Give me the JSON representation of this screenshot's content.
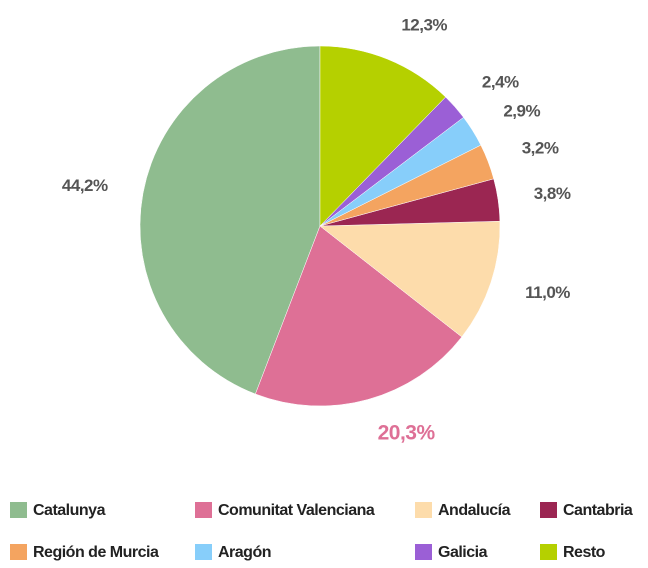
{
  "chart_data": {
    "type": "pie",
    "categories": [
      "Catalunya",
      "Comunitat Valenciana",
      "Andalucía",
      "Cantabria",
      "Región de Murcia",
      "Aragón",
      "Galicia",
      "Resto"
    ],
    "values": [
      44.2,
      20.3,
      11.0,
      3.8,
      3.2,
      2.9,
      2.4,
      12.3
    ],
    "value_labels": [
      "44,2%",
      "20,3%",
      "11,0%",
      "3,8%",
      "3,2%",
      "2,9%",
      "2,4%",
      "12,3%"
    ],
    "colors": [
      "#8fbc8f",
      "#de7096",
      "#fddcab",
      "#9b2652",
      "#f4a460",
      "#87cefa",
      "#9b5fd6",
      "#b5d000"
    ],
    "value_label_colors": [
      "#555555",
      "#de7096",
      "#555555",
      "#555555",
      "#555555",
      "#555555",
      "#555555",
      "#555555"
    ],
    "legend": "bottom"
  }
}
